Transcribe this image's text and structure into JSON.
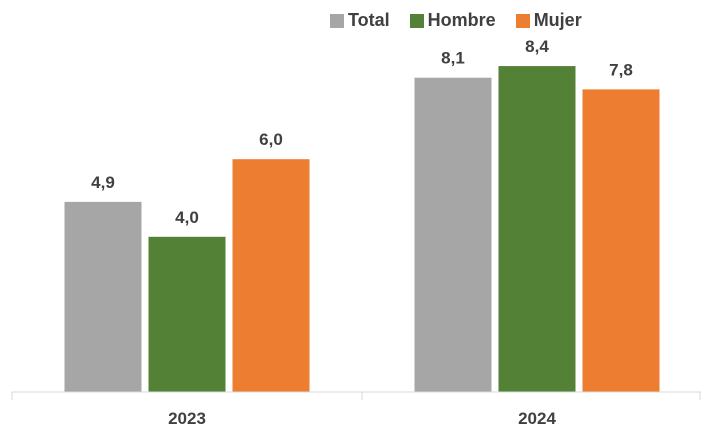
{
  "chart_data": {
    "type": "bar",
    "categories": [
      "2023",
      "2024"
    ],
    "series": [
      {
        "name": "Total",
        "color": "#a6a6a6",
        "values": [
          4.9,
          8.1
        ],
        "labels": [
          "4,9",
          "8,1"
        ]
      },
      {
        "name": "Hombre",
        "color": "#538135",
        "values": [
          4.0,
          8.4
        ],
        "labels": [
          "4,0",
          "8,4"
        ]
      },
      {
        "name": "Mujer",
        "color": "#ed7d31",
        "values": [
          6.0,
          7.8
        ],
        "labels": [
          "6,0",
          "7,8"
        ]
      }
    ],
    "title": "",
    "xlabel": "",
    "ylabel": "",
    "ylim": [
      0,
      9.0
    ],
    "legend_position": "top-right",
    "grid": false
  }
}
